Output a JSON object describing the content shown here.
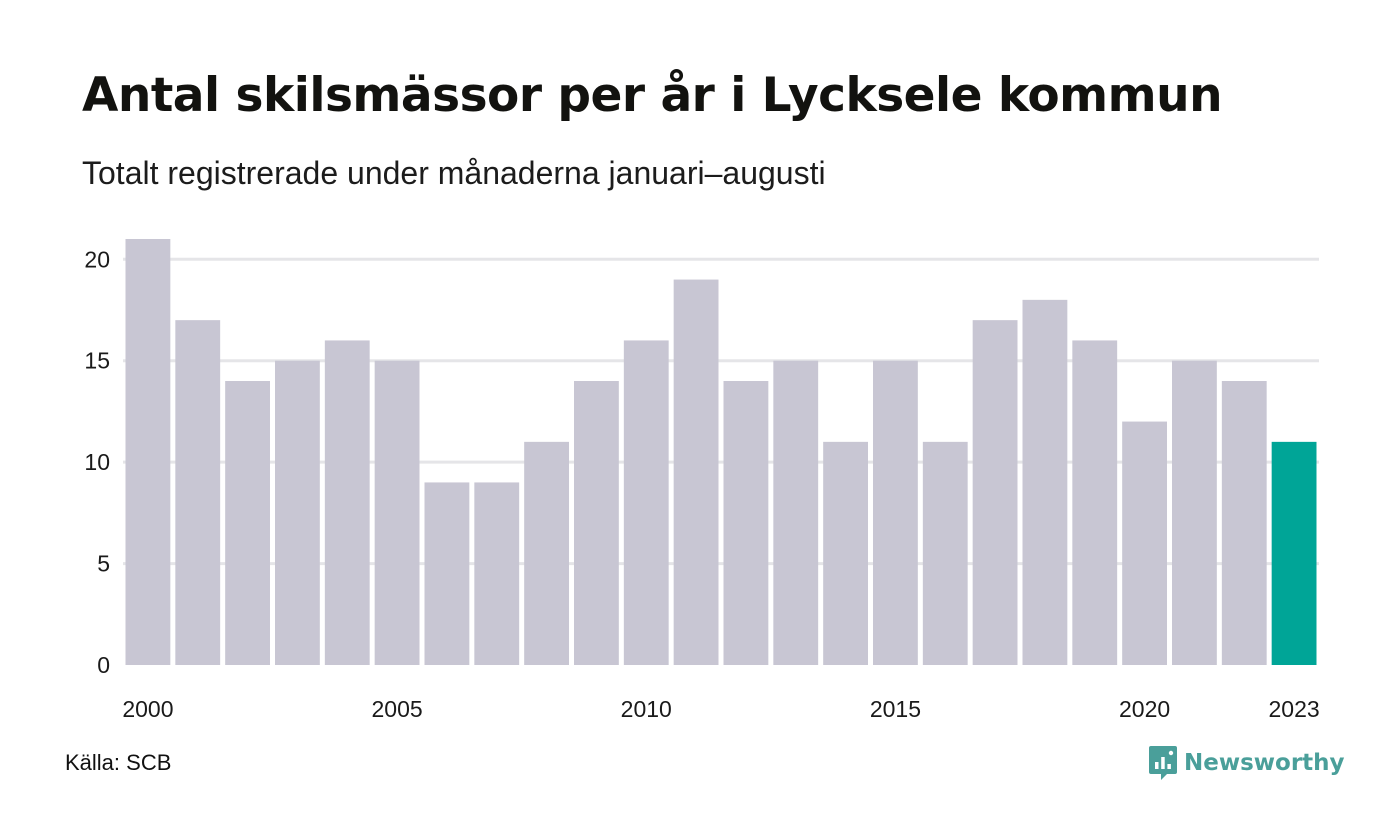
{
  "title": "Antal skilsmässor per år i Lycksele kommun",
  "subtitle": "Totalt registrerade under månaderna januari–augusti",
  "source": "Källa: SCB",
  "brand": {
    "name": "Newsworthy",
    "icon": "newsworthy-logo-icon",
    "color": "#4a9f9a"
  },
  "colors": {
    "bar": "#c8c6d3",
    "highlight": "#00a597",
    "grid": "#e5e5e8",
    "axis_text": "#1a1a1a"
  },
  "chart_data": {
    "type": "bar",
    "categories": [
      "2000",
      "2001",
      "2002",
      "2003",
      "2004",
      "2005",
      "2006",
      "2007",
      "2008",
      "2009",
      "2010",
      "2011",
      "2012",
      "2013",
      "2014",
      "2015",
      "2016",
      "2017",
      "2018",
      "2019",
      "2020",
      "2021",
      "2022",
      "2023"
    ],
    "values": [
      21,
      17,
      14,
      15,
      16,
      15,
      9,
      9,
      11,
      14,
      16,
      19,
      14,
      15,
      11,
      15,
      11,
      17,
      18,
      16,
      12,
      15,
      14,
      11
    ],
    "highlight_category": "2023",
    "x_tick_labels": [
      "2000",
      "2005",
      "2010",
      "2015",
      "2020",
      "2023"
    ],
    "y_ticks": [
      0,
      5,
      10,
      15,
      20
    ],
    "ylim": [
      0,
      21
    ],
    "xlabel": "",
    "ylabel": "",
    "grid": true,
    "legend": "none"
  }
}
